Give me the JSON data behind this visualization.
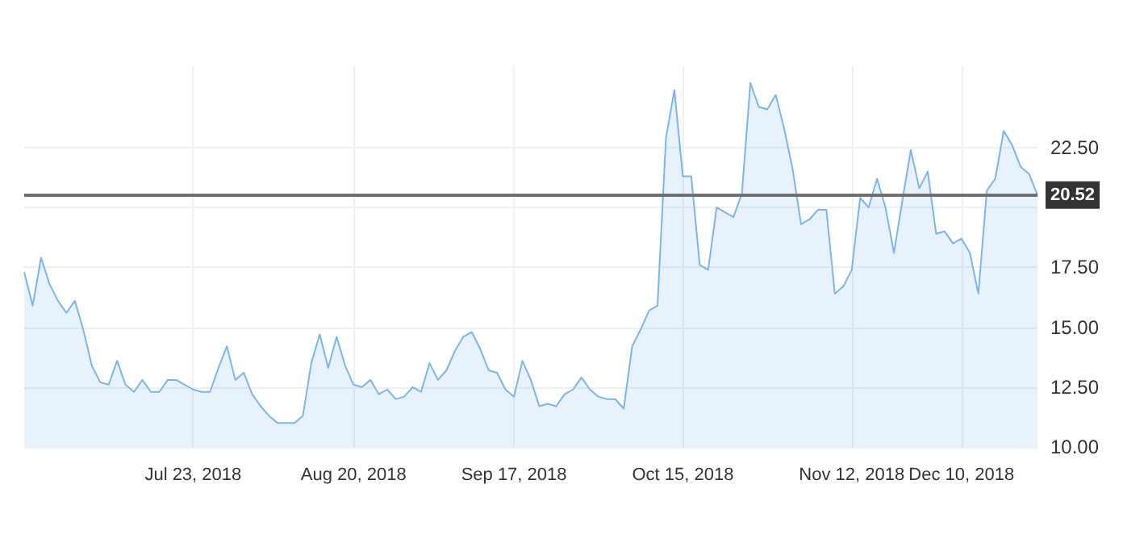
{
  "chart_data": {
    "type": "area",
    "categories": [
      null,
      null,
      null,
      null,
      null,
      null,
      null,
      null,
      null,
      null,
      null,
      null,
      null,
      null,
      null,
      null,
      null,
      null,
      null,
      null,
      "Jul 23, 2018",
      null,
      null,
      null,
      null,
      null,
      null,
      null,
      null,
      null,
      null,
      null,
      null,
      null,
      null,
      null,
      null,
      null,
      null,
      "Aug 20, 2018",
      null,
      null,
      null,
      null,
      null,
      null,
      null,
      null,
      null,
      null,
      null,
      null,
      null,
      null,
      null,
      null,
      null,
      null,
      "Sep 17, 2018",
      null,
      null,
      null,
      null,
      null,
      null,
      null,
      null,
      null,
      null,
      null,
      null,
      null,
      null,
      null,
      null,
      null,
      null,
      null,
      "Oct 15, 2018",
      null,
      null,
      null,
      null,
      null,
      null,
      null,
      null,
      null,
      null,
      null,
      null,
      null,
      null,
      null,
      null,
      null,
      null,
      null,
      "Nov 12, 2018",
      null,
      null,
      null,
      null,
      null,
      null,
      null,
      null,
      null,
      null,
      null,
      null,
      "Dec 10, 2018",
      null,
      null,
      null,
      null,
      null,
      null,
      null,
      null,
      null
    ],
    "series": [
      {
        "color": "#7cb5ec",
        "values": [
          17.3,
          15.9,
          17.9,
          16.8,
          16.1,
          15.6,
          16.1,
          14.9,
          13.4,
          12.7,
          12.6,
          13.6,
          12.6,
          12.3,
          12.8,
          12.3,
          12.3,
          12.8,
          12.8,
          12.6,
          12.4,
          12.3,
          12.3,
          13.3,
          14.2,
          12.8,
          13.1,
          12.2,
          11.7,
          11.3,
          11.0,
          11.0,
          11.0,
          11.3,
          13.5,
          14.7,
          13.3,
          14.6,
          13.4,
          12.6,
          12.5,
          12.8,
          12.2,
          12.4,
          12.0,
          12.1,
          12.5,
          12.3,
          13.5,
          12.8,
          13.2,
          14.0,
          14.6,
          14.8,
          14.1,
          13.2,
          13.1,
          12.4,
          12.1,
          13.6,
          12.8,
          11.7,
          11.8,
          11.7,
          12.2,
          12.4,
          12.9,
          12.4,
          12.1,
          12.0,
          12.0,
          11.6,
          14.2,
          14.9,
          15.7,
          15.9,
          22.9,
          24.9,
          21.3,
          21.3,
          17.6,
          17.4,
          20.0,
          19.8,
          19.6,
          20.6,
          25.2,
          24.2,
          24.1,
          24.7,
          23.3,
          21.6,
          19.3,
          19.5,
          19.9,
          19.9,
          16.4,
          16.7,
          17.4,
          20.4,
          20.0,
          21.2,
          20.0,
          18.1,
          20.3,
          22.4,
          20.8,
          21.5,
          18.9,
          19.0,
          18.5,
          18.7,
          18.1,
          16.4,
          20.7,
          21.2,
          23.2,
          22.6,
          21.7,
          21.4,
          20.52
        ]
      }
    ],
    "ylim": [
      10,
      25.9
    ],
    "yticks": [
      {
        "value": 10,
        "label": "10.00"
      },
      {
        "value": 12.5,
        "label": "12.50"
      },
      {
        "value": 15,
        "label": "15.00"
      },
      {
        "value": 17.5,
        "label": "17.50"
      },
      {
        "value": 20,
        "label": null
      },
      {
        "value": 22.5,
        "label": "22.50"
      }
    ],
    "grid": true,
    "ref_lines": [
      {
        "axis": "y",
        "value": 20.52,
        "label": "20.52",
        "color": "#707070"
      }
    ]
  }
}
